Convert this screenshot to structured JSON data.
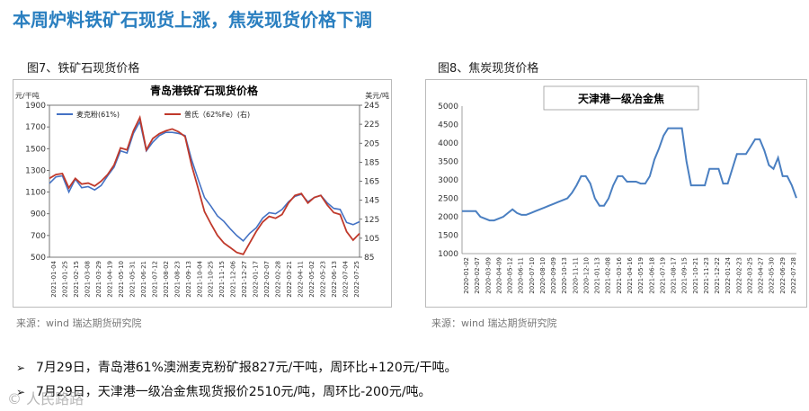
{
  "page": {
    "title": "本周炉料铁矿石现货上涨，焦炭现货价格下调",
    "fig7_caption": "图7、铁矿石现货价格",
    "fig8_caption": "图8、焦炭现货价格",
    "source_left": "来源：wind  瑞达期货研究院",
    "source_right": "来源：wind  瑞达期货研究院",
    "bullets": [
      "7月29日，青岛港61%澳洲麦克粉矿报827元/干吨，周环比+120元/干吨。",
      "7月29日，天津港一级冶金焦现货报价2510元/吨，周环比-200元/吨。"
    ],
    "bullet_icon": "arrow-bullet-icon",
    "watermark": "人民路路"
  },
  "chart_data": [
    {
      "type": "line",
      "title": "青岛港铁矿石现货价格",
      "ylabel_left": "元/干吨",
      "ylabel_right": "美元/吨",
      "ylim_left": [
        500,
        1900
      ],
      "ylim_right": [
        85,
        245
      ],
      "yticks_left": [
        500,
        700,
        900,
        1100,
        1300,
        1500,
        1700,
        1900
      ],
      "yticks_right": [
        85,
        105,
        125,
        145,
        165,
        185,
        205,
        225,
        245
      ],
      "x_tick_labels": [
        "2021-01-04",
        "2021-01-25",
        "2021-02-15",
        "2021-03-08",
        "2021-03-29",
        "2021-04-19",
        "2021-05-10",
        "2021-05-31",
        "2021-06-21",
        "2021-07-12",
        "2021-08-02",
        "2021-08-23",
        "2021-09-13",
        "2021-10-04",
        "2021-10-25",
        "2021-11-15",
        "2021-12-06",
        "2021-12-27",
        "2022-01-17",
        "2022-02-07",
        "2022-02-28",
        "2022-03-21",
        "2022-04-11",
        "2022-05-02",
        "2022-05-23",
        "2022-06-13",
        "2022-07-04",
        "2022-07-25"
      ],
      "legend_position": "top-left",
      "colors": {
        "mcp": "#4472c4",
        "platts": "#c0392b"
      },
      "series": [
        {
          "name": "麦克粉(61%)",
          "axis": "left",
          "values": [
            1180,
            1240,
            1250,
            1100,
            1220,
            1140,
            1150,
            1120,
            1160,
            1250,
            1330,
            1480,
            1460,
            1640,
            1750,
            1480,
            1560,
            1620,
            1650,
            1650,
            1640,
            1620,
            1400,
            1220,
            1050,
            970,
            880,
            830,
            760,
            700,
            650,
            720,
            770,
            860,
            910,
            900,
            940,
            1010,
            1060,
            1080,
            1010,
            1050,
            1070,
            1000,
            950,
            940,
            820,
            800,
            827
          ]
        },
        {
          "name": "普氏（62%Fe）(右)",
          "axis": "right",
          "values": [
            168,
            172,
            173,
            158,
            168,
            162,
            163,
            160,
            165,
            172,
            182,
            200,
            198,
            218,
            232,
            198,
            210,
            215,
            218,
            220,
            217,
            212,
            182,
            158,
            133,
            120,
            108,
            100,
            95,
            90,
            88,
            100,
            112,
            122,
            128,
            126,
            130,
            142,
            150,
            152,
            142,
            148,
            150,
            140,
            132,
            130,
            112,
            103,
            110
          ]
        }
      ]
    },
    {
      "type": "line",
      "title": "天津港一级冶金焦",
      "ylim": [
        1000,
        5000
      ],
      "yticks": [
        1000,
        1500,
        2000,
        2500,
        3000,
        3500,
        4000,
        4500,
        5000
      ],
      "x_tick_labels": [
        "2020-01-02",
        "2020-02-07",
        "2020-03-09",
        "2020-04-09",
        "2020-05-12",
        "2020-06-11",
        "2020-07-10",
        "2020-08-10",
        "2020-09-09",
        "2020-10-13",
        "2020-11-11",
        "2020-12-10",
        "2021-01-13",
        "2021-02-08",
        "2021-03-16",
        "2021-04-16",
        "2021-05-19",
        "2021-06-18",
        "2021-07-19",
        "2021-08-17",
        "2021-09-15",
        "2021-10-21",
        "2021-11-23",
        "2021-12-22",
        "2022-01-24",
        "2022-02-23",
        "2022-03-25",
        "2022-04-27",
        "2022-05-30",
        "2022-06-29",
        "2022-07-28"
      ],
      "color": "#4a7fc1",
      "values": [
        2150,
        2150,
        2150,
        2150,
        2000,
        1950,
        1900,
        1900,
        1950,
        2000,
        2100,
        2200,
        2100,
        2050,
        2050,
        2100,
        2150,
        2200,
        2250,
        2300,
        2350,
        2400,
        2450,
        2500,
        2650,
        2850,
        3100,
        3100,
        2900,
        2500,
        2300,
        2300,
        2500,
        2850,
        3100,
        3100,
        2950,
        2950,
        2950,
        2900,
        2900,
        3100,
        3550,
        3850,
        4200,
        4400,
        4400,
        4400,
        4400,
        3500,
        2850,
        2850,
        2850,
        2850,
        3300,
        3300,
        3300,
        2900,
        2900,
        3300,
        3700,
        3700,
        3700,
        3900,
        4100,
        4100,
        3800,
        3400,
        3300,
        3600,
        3100,
        3100,
        2850,
        2510
      ]
    }
  ]
}
